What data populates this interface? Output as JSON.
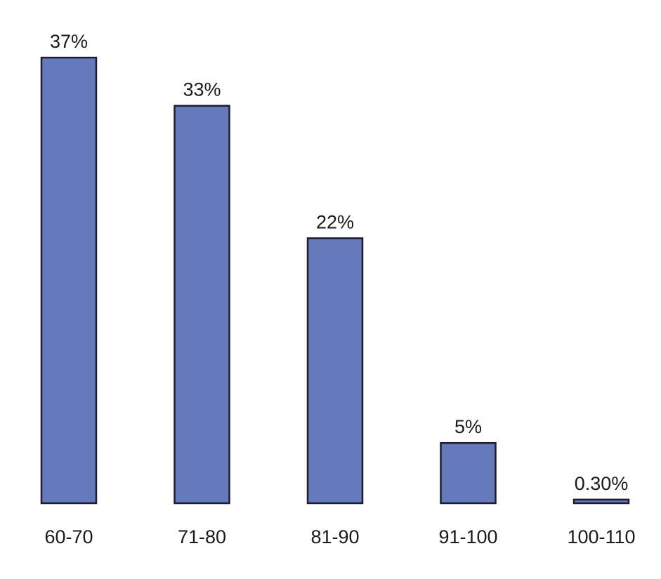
{
  "chart_data": {
    "type": "bar",
    "categories": [
      "60-70",
      "71-80",
      "81-90",
      "91-100",
      "100-110"
    ],
    "values": [
      37,
      33,
      22,
      5,
      0.3
    ],
    "value_labels": [
      "37%",
      "33%",
      "22%",
      "5%",
      "0.30%"
    ],
    "color": "#6579bd"
  }
}
